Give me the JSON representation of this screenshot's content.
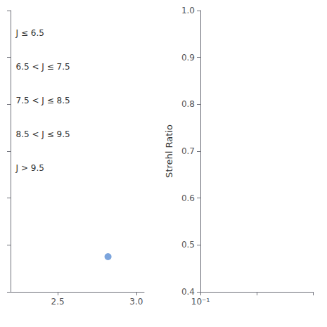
{
  "chart_data": [
    {
      "type": "scatter",
      "x": [
        2.82
      ],
      "values": [
        0.475
      ],
      "color": "#5b8fd4",
      "xlim": [
        2.2,
        3.05
      ],
      "xticks": [
        2.5,
        {
          "value": 3.0,
          "label": "3.0"
        }
      ],
      "ylim": [
        0.4,
        1.0
      ],
      "yticks": [
        0.4,
        0.5,
        0.6,
        0.7,
        0.8,
        0.9,
        1.0
      ],
      "tick_labels": "x",
      "grid": false,
      "annotations": [
        "J ≤ 6.5",
        "6.5 < J ≤ 7.5",
        "7.5 < J ≤ 8.5",
        "8.5 < J ≤ 9.5",
        "J > 9.5"
      ]
    },
    {
      "type": "scatter",
      "x": [],
      "values": [],
      "log": "x",
      "xlim": [
        0.1,
        10
      ],
      "xticks": [
        {
          "value": 0.1,
          "label": "10⁻¹"
        }
      ],
      "ylim": [
        0.4,
        1.0
      ],
      "yticks": [
        0.4,
        0.5,
        0.6,
        0.7,
        0.8,
        0.9,
        {
          "value": 1.0,
          "label": "1.0"
        }
      ],
      "ylabel": "Strehl Ratio",
      "grid": false
    }
  ]
}
